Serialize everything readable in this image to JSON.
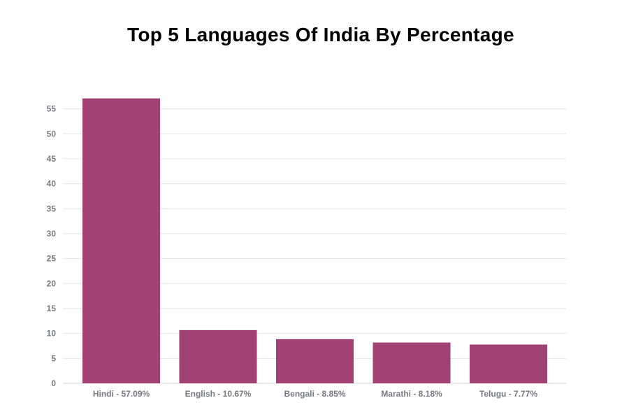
{
  "chart_data": {
    "type": "bar",
    "title": "Top 5 Languages Of India By Percentage",
    "xlabel": "",
    "ylabel": "",
    "categories": [
      "Hindi - 57.09%",
      "English - 10.67%",
      "Bengali - 8.85%",
      "Marathi - 8.18%",
      "Telugu - 7.77%"
    ],
    "values": [
      57.09,
      10.67,
      8.85,
      8.18,
      7.77
    ],
    "yticks": [
      0,
      5,
      10,
      15,
      20,
      25,
      30,
      35,
      40,
      45,
      50,
      55
    ],
    "ylim": [
      0,
      55
    ],
    "grid": true,
    "legend": "none",
    "colors": {
      "bar": "#a24173"
    }
  }
}
